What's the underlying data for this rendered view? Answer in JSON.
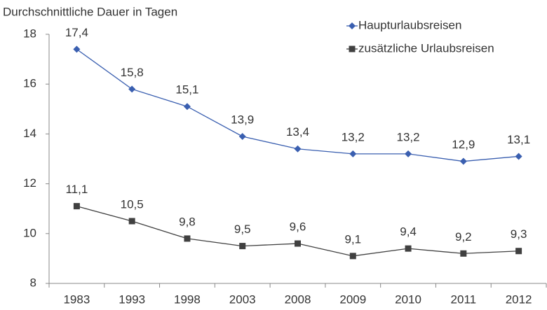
{
  "chart_data": {
    "type": "line",
    "ylabel": "Durchschnittliche Dauer in Tagen",
    "categories": [
      "1983",
      "1993",
      "1998",
      "2003",
      "2008",
      "2009",
      "2010",
      "2011",
      "2012"
    ],
    "series": [
      {
        "name": "Haupturlaubsreisen",
        "color": "#3a5fb0",
        "marker": "diamond",
        "values": [
          17.4,
          15.8,
          15.1,
          13.9,
          13.4,
          13.2,
          13.2,
          12.9,
          13.1
        ],
        "value_labels": [
          "17,4",
          "15,8",
          "15,1",
          "13,9",
          "13,4",
          "13,2",
          "13,2",
          "12,9",
          "13,1"
        ]
      },
      {
        "name": "zusätzliche Urlaubsreisen",
        "color": "#404040",
        "marker": "square",
        "values": [
          11.1,
          10.5,
          9.8,
          9.5,
          9.6,
          9.1,
          9.4,
          9.2,
          9.3
        ],
        "value_labels": [
          "11,1",
          "10,5",
          "9,8",
          "9,5",
          "9,6",
          "9,1",
          "9,4",
          "9,2",
          "9,3"
        ]
      }
    ],
    "ylim": [
      8,
      18
    ],
    "yticks": [
      8,
      10,
      12,
      14,
      16,
      18
    ],
    "legend": "top-right",
    "grid": false
  }
}
